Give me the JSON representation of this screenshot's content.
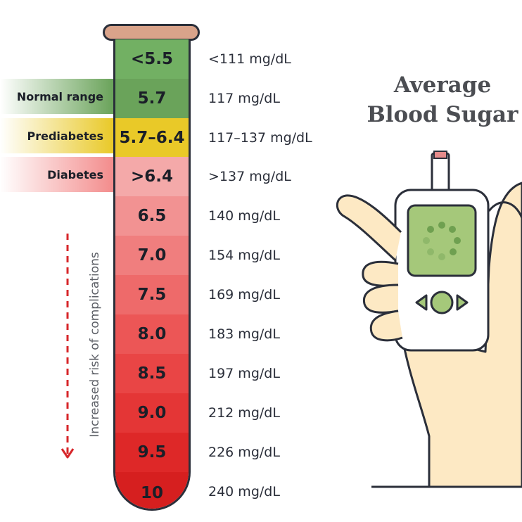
{
  "title_line1": "Average",
  "title_line2": "Blood Sugar",
  "categories": {
    "normal": "Normal range",
    "prediabetes": "Prediabetes",
    "diabetes": "Diabetes"
  },
  "risk_label": "Increased risk of complications",
  "levels": [
    {
      "a1c": "<5.5",
      "mgdl": "<111 mg/dL",
      "color": "#72b063"
    },
    {
      "a1c": "5.7",
      "mgdl": "117 mg/dL",
      "color": "#6aa35a"
    },
    {
      "a1c": "5.7–6.4",
      "mgdl": "117–137 mg/dL",
      "color": "#e9c928"
    },
    {
      "a1c": ">6.4",
      "mgdl": ">137 mg/dL",
      "color": "#f4a9a9"
    },
    {
      "a1c": "6.5",
      "mgdl": "140 mg/dL",
      "color": "#f29292"
    },
    {
      "a1c": "7.0",
      "mgdl": "154 mg/dL",
      "color": "#f07e7e"
    },
    {
      "a1c": "7.5",
      "mgdl": "169 mg/dL",
      "color": "#ee6a6a"
    },
    {
      "a1c": "8.0",
      "mgdl": "183 mg/dL",
      "color": "#ec5656"
    },
    {
      "a1c": "8.5",
      "mgdl": "197 mg/dL",
      "color": "#e94545"
    },
    {
      "a1c": "9.0",
      "mgdl": "212 mg/dL",
      "color": "#e43636"
    },
    {
      "a1c": "9.5",
      "mgdl": "226 mg/dL",
      "color": "#de2828"
    },
    {
      "a1c": "10",
      "mgdl": "240 mg/dL",
      "color": "#d61f1f"
    }
  ]
}
